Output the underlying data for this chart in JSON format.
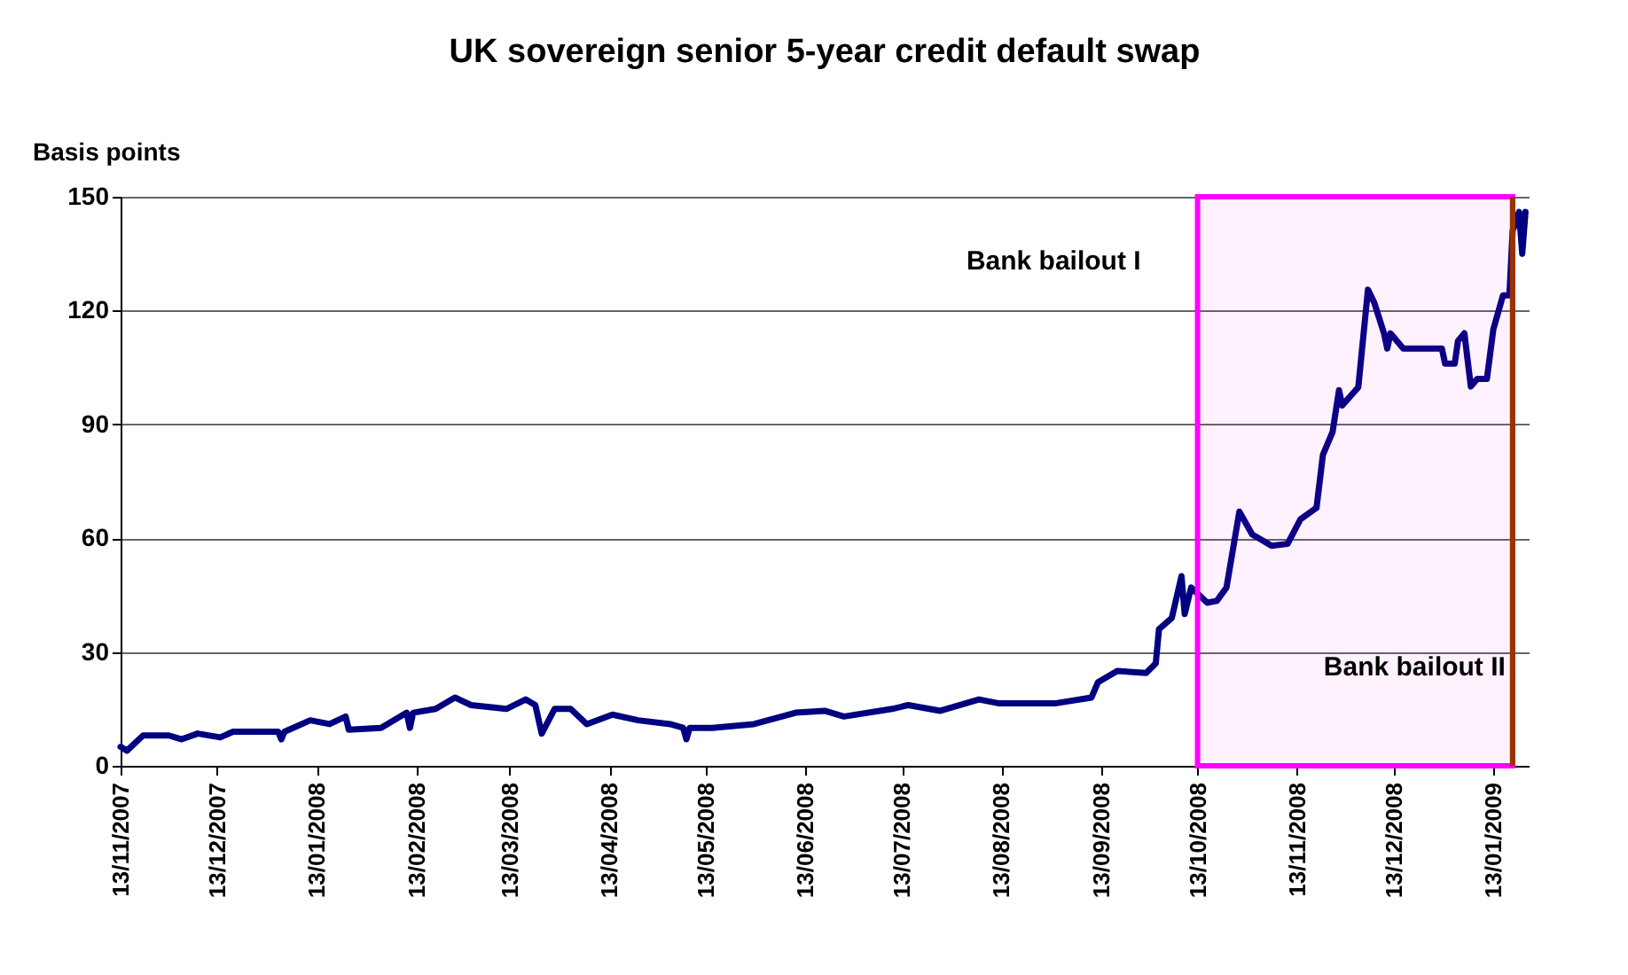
{
  "chart_data": {
    "type": "line",
    "title": "UK sovereign senior 5-year credit default swap",
    "ylabel": "Basis points",
    "x": [
      "2007-11-13",
      "2007-11-15",
      "2007-11-20",
      "2007-11-28",
      "2007-12-02",
      "2007-12-07",
      "2007-12-14",
      "2007-12-18",
      "2008-01-01",
      "2008-01-02",
      "2008-01-03",
      "2008-01-11",
      "2008-01-17",
      "2008-01-22",
      "2008-01-23",
      "2008-02-02",
      "2008-02-10",
      "2008-02-11",
      "2008-02-12",
      "2008-02-19",
      "2008-02-25",
      "2008-03-01",
      "2008-03-12",
      "2008-03-18",
      "2008-03-21",
      "2008-03-23",
      "2008-03-27",
      "2008-04-01",
      "2008-04-06",
      "2008-04-14",
      "2008-04-22",
      "2008-05-02",
      "2008-05-06",
      "2008-05-07",
      "2008-05-08",
      "2008-05-15",
      "2008-05-28",
      "2008-06-10",
      "2008-06-19",
      "2008-06-25",
      "2008-07-10",
      "2008-07-15",
      "2008-07-25",
      "2008-08-06",
      "2008-08-12",
      "2008-08-30",
      "2008-09-10",
      "2008-09-12",
      "2008-09-18",
      "2008-09-27",
      "2008-09-30",
      "2008-10-01",
      "2008-10-05",
      "2008-10-08",
      "2008-10-09",
      "2008-10-11",
      "2008-10-16",
      "2008-10-19",
      "2008-10-22",
      "2008-10-26",
      "2008-10-30",
      "2008-11-02",
      "2008-11-05",
      "2008-11-10",
      "2008-11-14",
      "2008-11-19",
      "2008-11-21",
      "2008-11-24",
      "2008-11-26",
      "2008-11-27",
      "2008-12-02",
      "2008-12-05",
      "2008-12-07",
      "2008-12-10",
      "2008-12-11",
      "2008-12-12",
      "2008-12-16",
      "2008-12-28",
      "2008-12-29",
      "2009-01-01",
      "2009-01-02",
      "2009-01-04",
      "2009-01-06",
      "2009-01-08",
      "2009-01-11",
      "2009-01-13",
      "2009-01-16",
      "2009-01-18",
      "2009-01-19",
      "2009-01-21",
      "2009-01-22",
      "2009-01-23"
    ],
    "series": [
      {
        "color": "#000080",
        "values": [
          5,
          4,
          8,
          8,
          7,
          8.5,
          7.5,
          9,
          9,
          7,
          9,
          12,
          11,
          13,
          9.5,
          10,
          14,
          10,
          14,
          15,
          18,
          16,
          15,
          17.5,
          16,
          8.5,
          15,
          15,
          11,
          13.5,
          12,
          11,
          10,
          7,
          10,
          10,
          11,
          14,
          14.5,
          13,
          15,
          16,
          14.5,
          17.5,
          16.5,
          16.5,
          18,
          22,
          25,
          24.5,
          27,
          36,
          39,
          50,
          40,
          47,
          43,
          43.5,
          47,
          67,
          61,
          59.5,
          58,
          58.5,
          65,
          68,
          82,
          88,
          99,
          95,
          99.8,
          125.5,
          122,
          114,
          110,
          114,
          110,
          110,
          106,
          106,
          112,
          114,
          100,
          102,
          102,
          115,
          124,
          124,
          141,
          146,
          135,
          146
        ]
      }
    ],
    "xlim": [
      "2007-11-13",
      "2009-01-24"
    ],
    "xticks": [
      {
        "value": "2007-11-13",
        "label": "13/11/2007"
      },
      {
        "value": "2007-12-13",
        "label": "13/12/2007"
      },
      {
        "value": "2008-01-13",
        "label": "13/01/2008"
      },
      {
        "value": "2008-02-13",
        "label": "13/02/2008"
      },
      {
        "value": "2008-03-13",
        "label": "13/03/2008"
      },
      {
        "value": "2008-04-13",
        "label": "13/04/2008"
      },
      {
        "value": "2008-05-13",
        "label": "13/05/2008"
      },
      {
        "value": "2008-06-13",
        "label": "13/06/2008"
      },
      {
        "value": "2008-07-13",
        "label": "13/07/2008"
      },
      {
        "value": "2008-08-13",
        "label": "13/08/2008"
      },
      {
        "value": "2008-09-13",
        "label": "13/09/2008"
      },
      {
        "value": "2008-10-13",
        "label": "13/10/2008"
      },
      {
        "value": "2008-11-13",
        "label": "13/11/2008"
      },
      {
        "value": "2008-12-13",
        "label": "13/12/2008"
      },
      {
        "value": "2009-01-13",
        "label": "13/01/2009"
      }
    ],
    "ylim": [
      0,
      150
    ],
    "yticks": [
      0,
      30,
      60,
      90,
      120,
      150
    ],
    "grid": "y",
    "bands": [
      {
        "axis": "x",
        "from": "2008-10-13",
        "to": "2009-01-19",
        "label": "Bank bailout I",
        "color": "#ff00ff"
      }
    ],
    "ref_lines": [
      {
        "axis": "x",
        "value": "2009-01-19",
        "label": "Bank bailout II",
        "color": "#993300"
      }
    ]
  }
}
